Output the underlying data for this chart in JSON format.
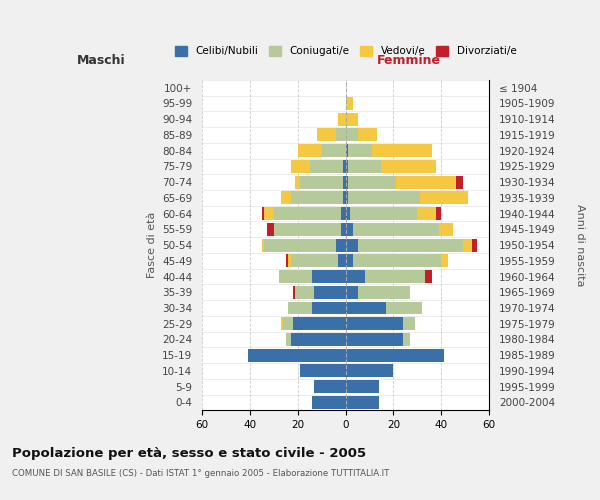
{
  "age_groups": [
    "0-4",
    "5-9",
    "10-14",
    "15-19",
    "20-24",
    "25-29",
    "30-34",
    "35-39",
    "40-44",
    "45-49",
    "50-54",
    "55-59",
    "60-64",
    "65-69",
    "70-74",
    "75-79",
    "80-84",
    "85-89",
    "90-94",
    "95-99",
    "100+"
  ],
  "birth_years": [
    "2000-2004",
    "1995-1999",
    "1990-1994",
    "1985-1989",
    "1980-1984",
    "1975-1979",
    "1970-1974",
    "1965-1969",
    "1960-1964",
    "1955-1959",
    "1950-1954",
    "1945-1949",
    "1940-1944",
    "1935-1939",
    "1930-1934",
    "1925-1929",
    "1920-1924",
    "1915-1919",
    "1910-1914",
    "1905-1909",
    "≤ 1904"
  ],
  "colors": {
    "celibi": "#3a6fa8",
    "coniugati": "#b5c99a",
    "vedovi": "#f5c842",
    "divorziati": "#c0202a"
  },
  "maschi": {
    "celibi": [
      14,
      13,
      19,
      41,
      23,
      22,
      14,
      13,
      14,
      3,
      4,
      2,
      2,
      1,
      1,
      1,
      0,
      0,
      0,
      0,
      0
    ],
    "coniugati": [
      0,
      0,
      0,
      0,
      2,
      4,
      10,
      8,
      14,
      20,
      30,
      28,
      28,
      22,
      18,
      14,
      10,
      4,
      0,
      0,
      0
    ],
    "vedovi": [
      0,
      0,
      0,
      0,
      0,
      1,
      0,
      0,
      0,
      1,
      1,
      0,
      4,
      4,
      2,
      8,
      10,
      8,
      3,
      0,
      0
    ],
    "divorziati": [
      0,
      0,
      0,
      0,
      0,
      0,
      0,
      1,
      0,
      1,
      0,
      3,
      1,
      0,
      0,
      0,
      0,
      0,
      0,
      0,
      0
    ]
  },
  "femmine": {
    "celibi": [
      14,
      14,
      20,
      41,
      24,
      24,
      17,
      5,
      8,
      3,
      5,
      3,
      2,
      1,
      1,
      1,
      1,
      0,
      0,
      0,
      0
    ],
    "coniugati": [
      0,
      0,
      0,
      0,
      3,
      5,
      15,
      22,
      25,
      37,
      44,
      36,
      28,
      30,
      20,
      14,
      10,
      5,
      0,
      0,
      0
    ],
    "vedovi": [
      0,
      0,
      0,
      0,
      0,
      0,
      0,
      0,
      0,
      3,
      4,
      6,
      8,
      20,
      25,
      23,
      25,
      8,
      5,
      3,
      0
    ],
    "divorziati": [
      0,
      0,
      0,
      0,
      0,
      0,
      0,
      0,
      3,
      0,
      2,
      0,
      2,
      0,
      3,
      0,
      0,
      0,
      0,
      0,
      0
    ]
  },
  "xlim": 60,
  "title": "Popolazione per età, sesso e stato civile - 2005",
  "subtitle": "COMUNE DI SAN BASILE (CS) - Dati ISTAT 1° gennaio 2005 - Elaborazione TUTTITALIA.IT",
  "ylabel_left": "Fasce di età",
  "ylabel_right": "Anni di nascita",
  "xlabel_maschi": "Maschi",
  "xlabel_femmine": "Femmine",
  "legend_labels": [
    "Celibi/Nubili",
    "Coniugati/e",
    "Vedovi/e",
    "Divorziati/e"
  ],
  "bg_color": "#f0f0f0",
  "plot_bg_color": "#ffffff"
}
